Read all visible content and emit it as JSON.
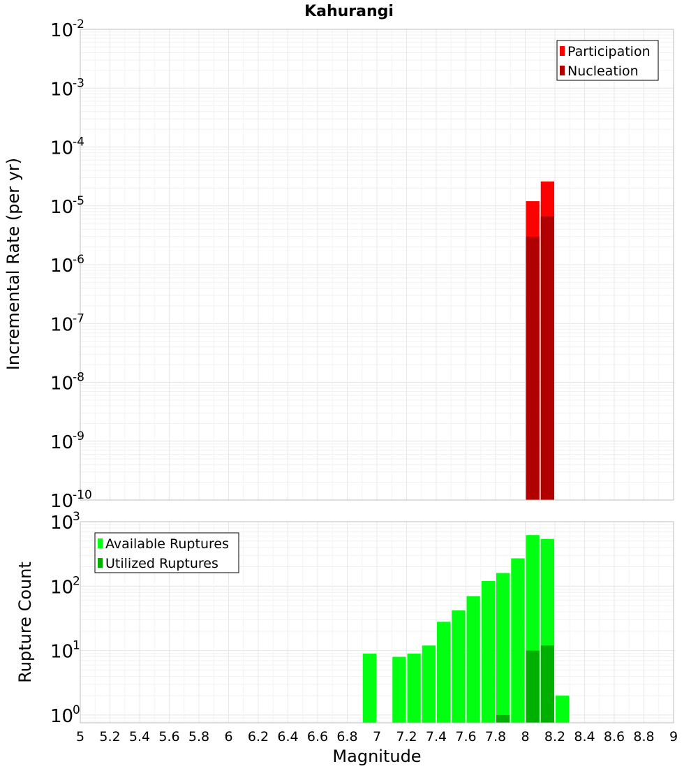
{
  "chart_data": {
    "type": "bar",
    "title": "Kahurangi",
    "xlabel": "Magnitude",
    "xlim": [
      5,
      9
    ],
    "x_ticks": [
      "5",
      "5.2",
      "5.4",
      "5.6",
      "5.8",
      "6",
      "6.2",
      "6.4",
      "6.6",
      "6.8",
      "7",
      "7.2",
      "7.4",
      "7.6",
      "7.8",
      "8",
      "8.2",
      "8.4",
      "8.6",
      "8.8",
      "9"
    ],
    "bin_width": 0.1,
    "panels": [
      {
        "id": "rate",
        "ylabel": "Incremental Rate (per yr)",
        "yscale": "log",
        "ylim_exp": [
          -10,
          -2
        ],
        "y_tick_base": "10",
        "y_tick_exps": [
          "-10",
          "-9",
          "-8",
          "-7",
          "-6",
          "-5",
          "-4",
          "-3",
          "-2"
        ],
        "legend": {
          "position": "top-right",
          "entries": [
            "Participation",
            "Nucleation"
          ]
        },
        "series": [
          {
            "name": "Participation",
            "color": "#ff0000",
            "points": [
              {
                "x": 8.05,
                "y": 1.2e-05
              },
              {
                "x": 8.15,
                "y": 2.6e-05
              }
            ]
          },
          {
            "name": "Nucleation",
            "color": "#b00000",
            "points": [
              {
                "x": 8.05,
                "y": 3e-06
              },
              {
                "x": 8.15,
                "y": 6.6e-06
              }
            ]
          }
        ]
      },
      {
        "id": "count",
        "ylabel": "Rupture Count",
        "yscale": "log",
        "ylim_exp": [
          -0.12,
          3
        ],
        "y_tick_base": "10",
        "y_tick_exps": [
          "0",
          "1",
          "2",
          "3"
        ],
        "legend": {
          "position": "top-left",
          "entries": [
            "Available Ruptures",
            "Utilized Ruptures"
          ]
        },
        "series": [
          {
            "name": "Available Ruptures",
            "color": "#00ff11",
            "points": [
              {
                "x": 6.95,
                "y": 9
              },
              {
                "x": 7.15,
                "y": 8
              },
              {
                "x": 7.25,
                "y": 9
              },
              {
                "x": 7.35,
                "y": 12
              },
              {
                "x": 7.45,
                "y": 28
              },
              {
                "x": 7.55,
                "y": 42
              },
              {
                "x": 7.65,
                "y": 70
              },
              {
                "x": 7.75,
                "y": 120
              },
              {
                "x": 7.85,
                "y": 160
              },
              {
                "x": 7.95,
                "y": 270
              },
              {
                "x": 8.05,
                "y": 620
              },
              {
                "x": 8.15,
                "y": 540
              },
              {
                "x": 8.25,
                "y": 2
              }
            ]
          },
          {
            "name": "Utilized Ruptures",
            "color": "#00b000",
            "points": [
              {
                "x": 7.85,
                "y": 1
              },
              {
                "x": 8.05,
                "y": 10
              },
              {
                "x": 8.15,
                "y": 12
              }
            ]
          }
        ]
      }
    ]
  }
}
